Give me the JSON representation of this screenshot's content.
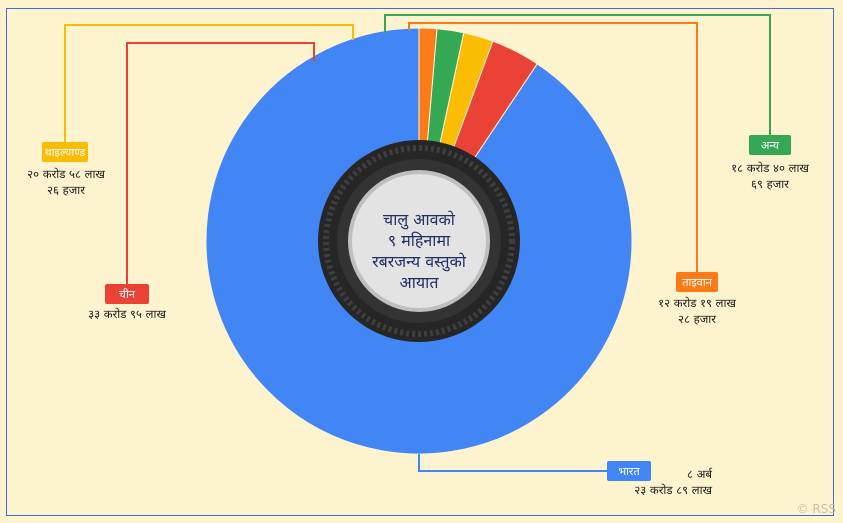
{
  "chart_data": {
    "type": "pie",
    "title_lines": [
      "चालु आवको",
      "९ महिनामा",
      "रबरजन्य वस्तुको",
      "आयात"
    ],
    "slices": [
      {
        "key": "bharat",
        "name": "भारत",
        "value": 823.89,
        "value_lines": [
          "८ अर्ब",
          "२३ करोड ८९ लाख"
        ],
        "color": "#4285f4"
      },
      {
        "key": "chin",
        "name": "चीन",
        "value": 33.95,
        "value_lines": [
          "३३ करोड ९५ लाख"
        ],
        "color": "#ea4335"
      },
      {
        "key": "thailand",
        "name": "थाइल्याण्ड",
        "value": 20.5826,
        "value_lines": [
          "२० करोड ५८ लाख",
          "२६ हजार"
        ],
        "color": "#fbbc04"
      },
      {
        "key": "anya",
        "name": "अन्य",
        "value": 18.4069,
        "value_lines": [
          "१८ करोड ४० लाख",
          "६९ हजार"
        ],
        "color": "#34a853"
      },
      {
        "key": "taiwan",
        "name": "ताइवान",
        "value": 12.1928,
        "value_lines": [
          "१२ करोड १९ लाख",
          "२८ हजार"
        ],
        "color": "#fa7b17"
      }
    ]
  },
  "watermark": "© RSS",
  "colors": {
    "background": "#fdf3cf",
    "frame": "#3d6ad6",
    "tire": "#262626",
    "hub": "#e3e3e3",
    "title": "#1e2f63"
  }
}
